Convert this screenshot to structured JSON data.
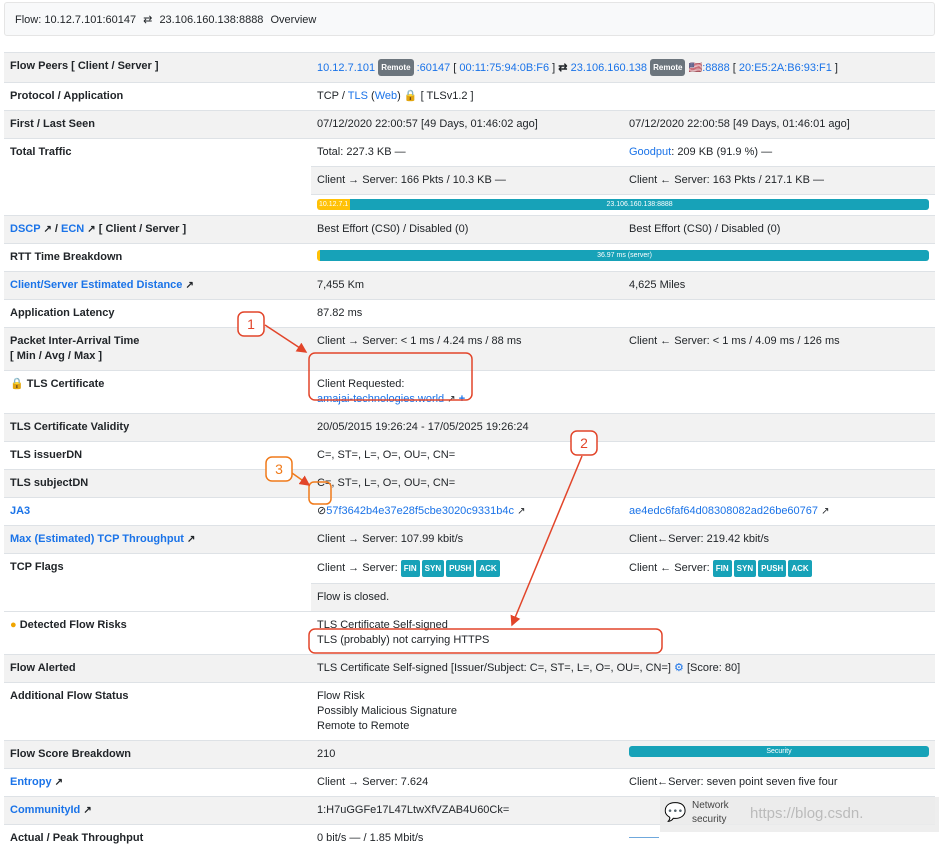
{
  "header": {
    "flow_label": "Flow: 10.12.7.101:60147",
    "arrow": "⇄",
    "server": "23.106.160.138:8888",
    "tab": "Overview"
  },
  "rows": {
    "peers": {
      "label": "Flow Peers [ Client / Server ]",
      "client_ip": "10.12.7.101",
      "badge": "Remote",
      "client_port": ":60147",
      "client_mac": "00:11:75:94:0B:F6",
      "server_ip": "23.106.160.138",
      "server_port": ":8888",
      "server_mac": "20:E5:2A:B6:93:F1"
    },
    "protocol": {
      "label": "Protocol / Application",
      "tcp": "TCP / ",
      "tls": "TLS",
      "web": "Web",
      "version": "[ TLSv1.2 ]"
    },
    "seen": {
      "label": "First / Last Seen",
      "first": "07/12/2020 22:00:57 [49 Days, 01:46:02 ago]",
      "last": "07/12/2020 22:00:58 [49 Days, 01:46:01 ago]"
    },
    "traffic": {
      "label": "Total Traffic",
      "total": "Total: 227.3 KB —",
      "goodput_link": "Goodput",
      "goodput": ": 209 KB (91.9 %) —",
      "c2s": "Client → Server: 166 Pkts / 10.3 KB —",
      "s2c": "Client ← Server: 163 Pkts / 217.1 KB —",
      "bar_client": "10.12.7.1",
      "bar_server": "23.106.160.138:8888",
      "client_pct": 4.6
    },
    "dscp": {
      "dscp": "DSCP",
      "ecn": "ECN",
      "rest": "[ Client / Server ]",
      "client": "Best Effort (CS0) / Disabled (0)",
      "server": "Best Effort (CS0) / Disabled (0)"
    },
    "rtt": {
      "label": "RTT Time Breakdown",
      "bar": "36.97 ms (server)"
    },
    "distance": {
      "label": "Client/Server Estimated Distance",
      "km": "7,455 Km",
      "miles": "4,625 Miles"
    },
    "latency": {
      "label": "Application Latency",
      "value": "87.82 ms"
    },
    "iat": {
      "label": "Packet Inter-Arrival Time",
      "label2": "[ Min / Avg / Max ]",
      "c2s": "Client → Server: < 1 ms / 4.24 ms / 88 ms",
      "s2c": "Client ← Server: < 1 ms / 4.09 ms / 126 ms"
    },
    "cert": {
      "label": "TLS Certificate",
      "requested": "Client Requested:",
      "host": "amajai-technologies.world"
    },
    "validity": {
      "label": "TLS Certificate Validity",
      "value": "20/05/2015 19:26:24 - 17/05/2025 19:26:24"
    },
    "issuer": {
      "label": "TLS issuerDN",
      "value": "C=, ST=, L=, O=, OU=, CN="
    },
    "subject": {
      "label": "TLS subjectDN",
      "value": "C=, ST=, L=, O=, OU=, CN="
    },
    "ja3": {
      "label": "JA3",
      "client": "57f3642b4e37e28f5cbe3020c9331b4c",
      "server": "ae4edc6faf64d08308082ad26be60767"
    },
    "throughput_max": {
      "label": "Max (Estimated) TCP Throughput",
      "c2s": "Client → Server: 107.99 kbit/s",
      "s2c": "Client←Server:  219.42 kbit/s"
    },
    "flags": {
      "label": "TCP Flags",
      "c2s": "Client → Server:",
      "s2c": "Client ← Server:",
      "list": [
        "FIN",
        "SYN",
        "PUSH",
        "ACK"
      ],
      "closed": "Flow is closed."
    },
    "risks": {
      "label": "Detected Flow Risks",
      "r1": "TLS Certificate Self-signed",
      "r2": "TLS (probably) not carrying HTTPS"
    },
    "alerted": {
      "label": "Flow Alerted",
      "value": "TLS Certificate Self-signed [Issuer/Subject: C=, ST=, L=, O=, OU=, CN=]",
      "score": "[Score: 80]"
    },
    "status": {
      "label": "Additional Flow Status",
      "s1": "Flow Risk",
      "s2": "Possibly Malicious Signature",
      "s3": "Remote to Remote"
    },
    "score": {
      "label": "Flow Score Breakdown",
      "value": "210",
      "bar": "Security"
    },
    "entropy": {
      "label": "Entropy",
      "c2s": "Client → Server: 7.624",
      "s2c": "Client←Server:  seven point seven five four"
    },
    "community": {
      "label": "CommunityId",
      "value": "1:H7uGGFe17L47LtwXfVZAB4U60Ck="
    },
    "peak": {
      "label": "Actual / Peak Throughput",
      "value": "0 bit/s — / 1.85 Mbit/s"
    }
  },
  "annotations": {
    "n1": "1",
    "n2": "2",
    "n3": "3",
    "color": "#e2452a"
  },
  "watermark": {
    "l1": "Network",
    "l2": "security",
    "url": "https://blog.csdn."
  },
  "colors": {
    "link": "#1a73e8",
    "teal": "#17a2b8",
    "yellow": "#ffc107"
  }
}
